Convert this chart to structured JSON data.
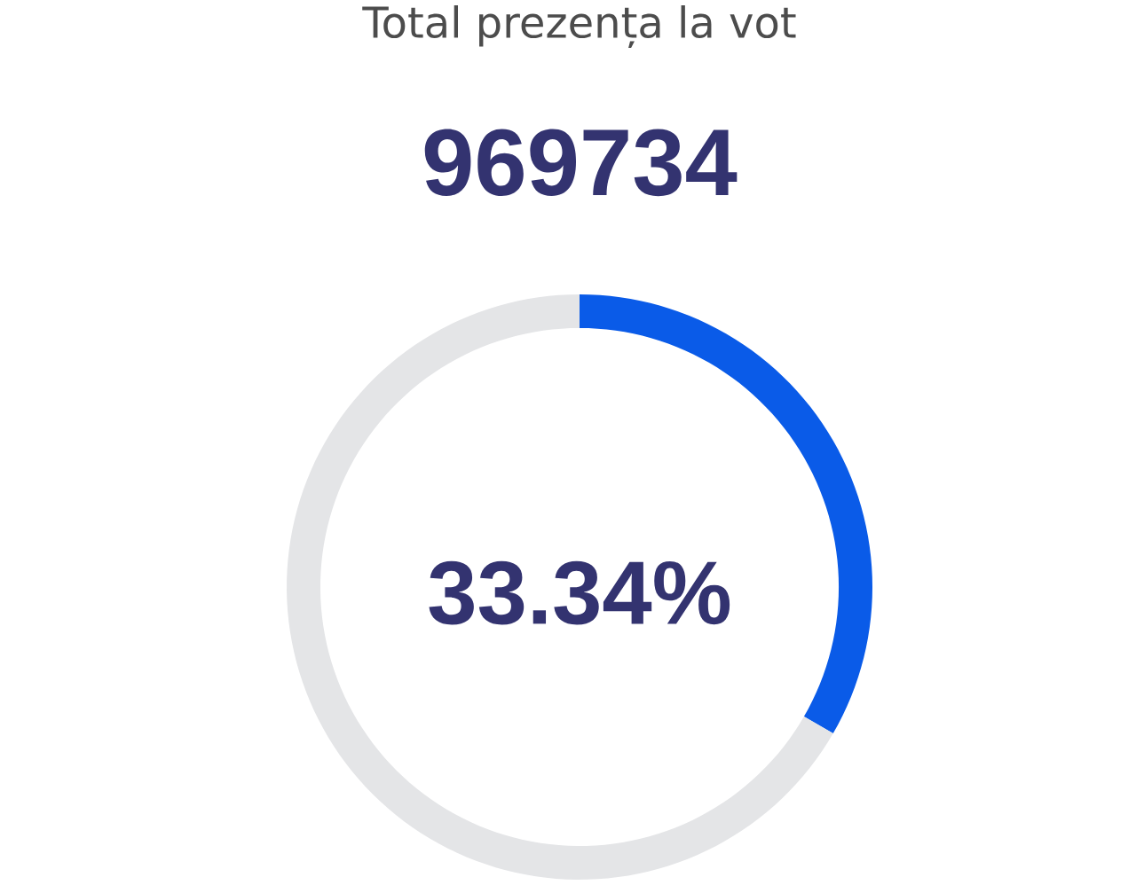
{
  "chart_data": {
    "type": "donut",
    "title": "Total prezența la vot",
    "subtitle": "969734",
    "categories": [
      null,
      null
    ],
    "values": [
      33.34,
      66.66
    ],
    "colors": [
      "#0a5be8",
      "#e4e5e7"
    ],
    "annotations": [
      "33.34%"
    ]
  }
}
